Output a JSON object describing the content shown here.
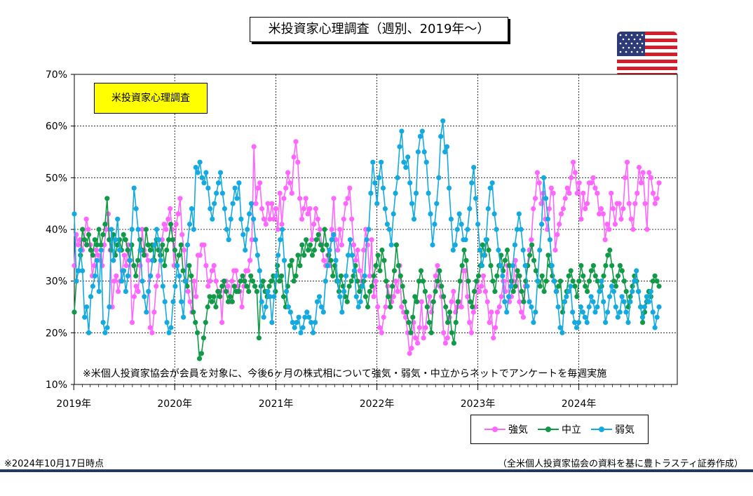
{
  "title": "米投資家心理調査（週別、2019年～）",
  "inset_label": "米投資家心理調査",
  "note": "※米個人投資家協会が会員を対象に、今後6ヶ月の株式相について強気・弱気・中立からネットでアンケートを毎週実施",
  "as_of": "※2024年10月17日時点",
  "source": "（全米個人投資家協会の資料を基に豊トラスティ証券作成）",
  "icons": {
    "flag": "us-flag-icon"
  },
  "chart_data": {
    "type": "line",
    "xlabel": "",
    "ylabel": "",
    "ylim": [
      10,
      70
    ],
    "y_ticks": [
      "10%",
      "20%",
      "30%",
      "40%",
      "50%",
      "60%",
      "70%"
    ],
    "x_ticks": [
      "2019年",
      "2020年",
      "2021年",
      "2022年",
      "2023年",
      "2024年"
    ],
    "grid": "horizontal-dotted",
    "legend": "bottom-right",
    "x_start": "2019-01-03",
    "x_end": "2024-10-17",
    "series": [
      {
        "name": "強気",
        "color": "#ff66ff",
        "values": [
          33,
          39,
          37,
          38,
          36,
          38,
          42,
          40,
          37,
          31,
          33,
          36,
          35,
          34,
          33,
          37,
          40,
          43,
          36,
          25,
          30,
          31,
          28,
          30,
          32,
          35,
          33,
          37,
          34,
          22,
          27,
          29,
          28,
          33,
          40,
          36,
          35,
          34,
          21,
          20,
          24,
          29,
          31,
          35,
          38,
          41,
          40,
          42,
          44,
          40,
          33,
          41,
          43,
          46,
          39,
          36,
          30,
          28,
          26,
          24,
          30,
          27,
          35,
          35,
          37,
          37,
          33,
          29,
          30,
          32,
          33,
          30,
          28,
          28,
          22,
          30,
          30,
          29,
          26,
          30,
          32,
          32,
          29,
          28,
          25,
          29,
          32,
          32,
          34,
          38,
          56,
          45,
          48,
          49,
          44,
          42,
          41,
          45,
          42,
          45,
          42,
          44,
          40,
          47,
          41,
          46,
          48,
          51,
          49,
          47,
          54,
          57,
          53,
          46,
          42,
          44,
          46,
          43,
          44,
          38,
          41,
          44,
          42,
          40,
          37,
          34,
          33,
          35,
          33,
          40,
          46,
          38,
          36,
          40,
          37,
          42,
          45,
          46,
          48,
          42,
          37,
          34,
          36,
          32,
          30,
          36,
          40,
          37,
          31,
          38,
          27,
          30,
          25,
          21,
          20,
          23,
          25,
          29,
          27,
          26,
          27,
          30,
          28,
          33,
          25,
          24,
          23,
          20,
          16,
          17,
          22,
          19,
          18,
          21,
          26,
          19,
          21,
          25,
          27,
          24,
          26,
          31,
          33,
          29,
          27,
          20,
          18,
          19,
          23,
          26,
          28,
          24,
          25,
          26,
          25,
          32,
          32,
          27,
          22,
          20,
          24,
          25,
          30,
          28,
          29,
          31,
          28,
          26,
          22,
          24,
          19,
          21,
          24,
          25,
          27,
          30,
          28,
          33,
          26,
          27,
          30,
          34,
          31,
          26,
          24,
          23,
          29,
          33,
          36,
          38,
          44,
          46,
          51,
          49,
          45,
          47,
          42,
          40,
          44,
          48,
          47,
          36,
          39,
          41,
          43,
          44,
          46,
          48,
          47,
          50,
          53,
          51,
          47,
          49,
          42,
          47,
          44,
          45,
          49,
          49,
          50,
          48,
          47,
          43,
          44,
          43,
          38,
          41,
          40,
          47,
          44,
          41,
          45,
          45,
          42,
          44,
          50,
          53,
          45,
          42,
          40,
          45,
          47,
          52,
          49,
          51,
          45,
          40,
          51,
          50,
          47,
          45,
          46,
          49
        ],
        "note_values": "approximate weekly readings"
      },
      {
        "name": "中立",
        "color": "#109a48",
        "values": [
          24,
          30,
          32,
          35,
          40,
          38,
          37,
          39,
          36,
          35,
          38,
          37,
          40,
          37,
          39,
          41,
          46,
          38,
          36,
          39,
          35,
          37,
          38,
          36,
          39,
          38,
          36,
          34,
          37,
          33,
          31,
          34,
          38,
          36,
          35,
          40,
          37,
          36,
          37,
          34,
          38,
          36,
          35,
          37,
          33,
          36,
          38,
          41,
          38,
          36,
          33,
          35,
          37,
          32,
          30,
          29,
          33,
          31,
          24,
          22,
          20,
          15,
          16,
          19,
          22,
          25,
          27,
          26,
          27,
          25,
          28,
          27,
          29,
          30,
          28,
          26,
          27,
          26,
          29,
          28,
          28,
          30,
          31,
          30,
          29,
          28,
          31,
          30,
          29,
          28,
          19,
          29,
          30,
          28,
          27,
          29,
          30,
          31,
          28,
          33,
          30,
          31,
          27,
          25,
          29,
          33,
          34,
          30,
          31,
          35,
          33,
          37,
          35,
          38,
          36,
          37,
          35,
          36,
          38,
          39,
          37,
          36,
          40,
          37,
          35,
          34,
          31,
          33,
          30,
          28,
          31,
          29,
          27,
          26,
          29,
          30,
          31,
          33,
          30,
          28,
          29,
          30,
          27,
          25,
          28,
          29,
          31,
          33,
          35,
          32,
          36,
          34,
          30,
          27,
          25,
          29,
          32,
          37,
          33,
          31,
          29,
          26,
          24,
          22,
          20,
          23,
          27,
          26,
          30,
          32,
          30,
          28,
          25,
          22,
          20,
          26,
          28,
          30,
          32,
          29,
          27,
          25,
          22,
          24,
          20,
          18,
          22,
          26,
          30,
          33,
          36,
          34,
          30,
          26,
          25,
          28,
          30,
          31,
          33,
          37,
          35,
          38,
          36,
          33,
          30,
          28,
          31,
          33,
          35,
          32,
          34,
          36,
          33,
          30,
          28,
          29,
          32,
          31,
          28,
          26,
          30,
          33,
          35,
          37,
          34,
          32,
          30,
          29,
          31,
          28,
          30,
          35,
          33,
          31,
          30,
          28,
          29,
          30,
          24,
          26,
          28,
          31,
          32,
          30,
          29,
          27,
          30,
          33,
          31,
          29,
          28,
          30,
          32,
          33,
          31,
          30,
          28,
          29,
          31,
          33,
          35,
          36,
          33,
          30,
          29,
          31,
          33,
          32,
          30,
          28,
          25,
          27,
          29,
          31,
          30,
          28,
          25,
          22,
          24,
          26,
          28,
          27,
          30,
          31,
          30,
          29
        ],
        "note_values": "approximate weekly readings"
      },
      {
        "name": "弱気",
        "color": "#14aadf",
        "values": [
          43,
          30,
          32,
          36,
          32,
          23,
          25,
          20,
          27,
          29,
          31,
          34,
          28,
          36,
          22,
          20,
          21,
          25,
          40,
          34,
          38,
          42,
          36,
          30,
          32,
          28,
          31,
          34,
          40,
          48,
          44,
          40,
          36,
          30,
          27,
          24,
          28,
          31,
          34,
          37,
          40,
          38,
          34,
          29,
          26,
          22,
          20,
          21,
          26,
          29,
          33,
          31,
          26,
          23,
          30,
          37,
          41,
          44,
          40,
          52,
          51,
          53,
          50,
          49,
          51,
          48,
          44,
          42,
          45,
          47,
          49,
          51,
          47,
          44,
          40,
          38,
          42,
          45,
          48,
          46,
          49,
          42,
          39,
          36,
          40,
          43,
          45,
          42,
          38,
          35,
          32,
          26,
          23,
          25,
          28,
          27,
          22,
          27,
          31,
          35,
          38,
          40,
          34,
          28,
          25,
          24,
          22,
          21,
          22,
          23,
          20,
          21,
          23,
          24,
          23,
          22,
          20,
          22,
          26,
          27,
          25,
          24,
          30,
          33,
          36,
          38,
          39,
          34,
          30,
          27,
          24,
          28,
          31,
          35,
          38,
          35,
          32,
          27,
          25,
          26,
          29,
          31,
          38,
          40,
          47,
          53,
          49,
          45,
          50,
          53,
          48,
          44,
          41,
          40,
          37,
          43,
          47,
          50,
          56,
          59,
          53,
          52,
          54,
          49,
          45,
          42,
          47,
          55,
          58,
          59,
          55,
          53,
          47,
          43,
          37,
          41,
          45,
          50,
          58,
          61,
          55,
          56,
          48,
          42,
          36,
          37,
          40,
          43,
          41,
          38,
          38,
          40,
          44,
          49,
          52,
          46,
          41,
          36,
          33,
          35,
          38,
          44,
          48,
          49,
          43,
          40,
          36,
          33,
          31,
          26,
          24,
          27,
          29,
          33,
          37,
          40,
          43,
          40,
          36,
          33,
          29,
          26,
          25,
          22,
          24,
          30,
          36,
          41,
          50,
          46,
          42,
          38,
          33,
          30,
          28,
          25,
          21,
          20,
          26,
          27,
          28,
          29,
          24,
          22,
          21,
          22,
          25,
          24,
          23,
          22,
          25,
          27,
          26,
          24,
          25,
          28,
          30,
          26,
          22,
          24,
          27,
          29,
          28,
          25,
          23,
          24,
          27,
          26,
          24,
          22,
          26,
          28,
          30,
          32,
          28,
          25,
          23,
          25,
          27,
          26,
          28,
          24,
          21,
          23,
          25
        ],
        "note_values": "approximate weekly readings"
      }
    ]
  }
}
